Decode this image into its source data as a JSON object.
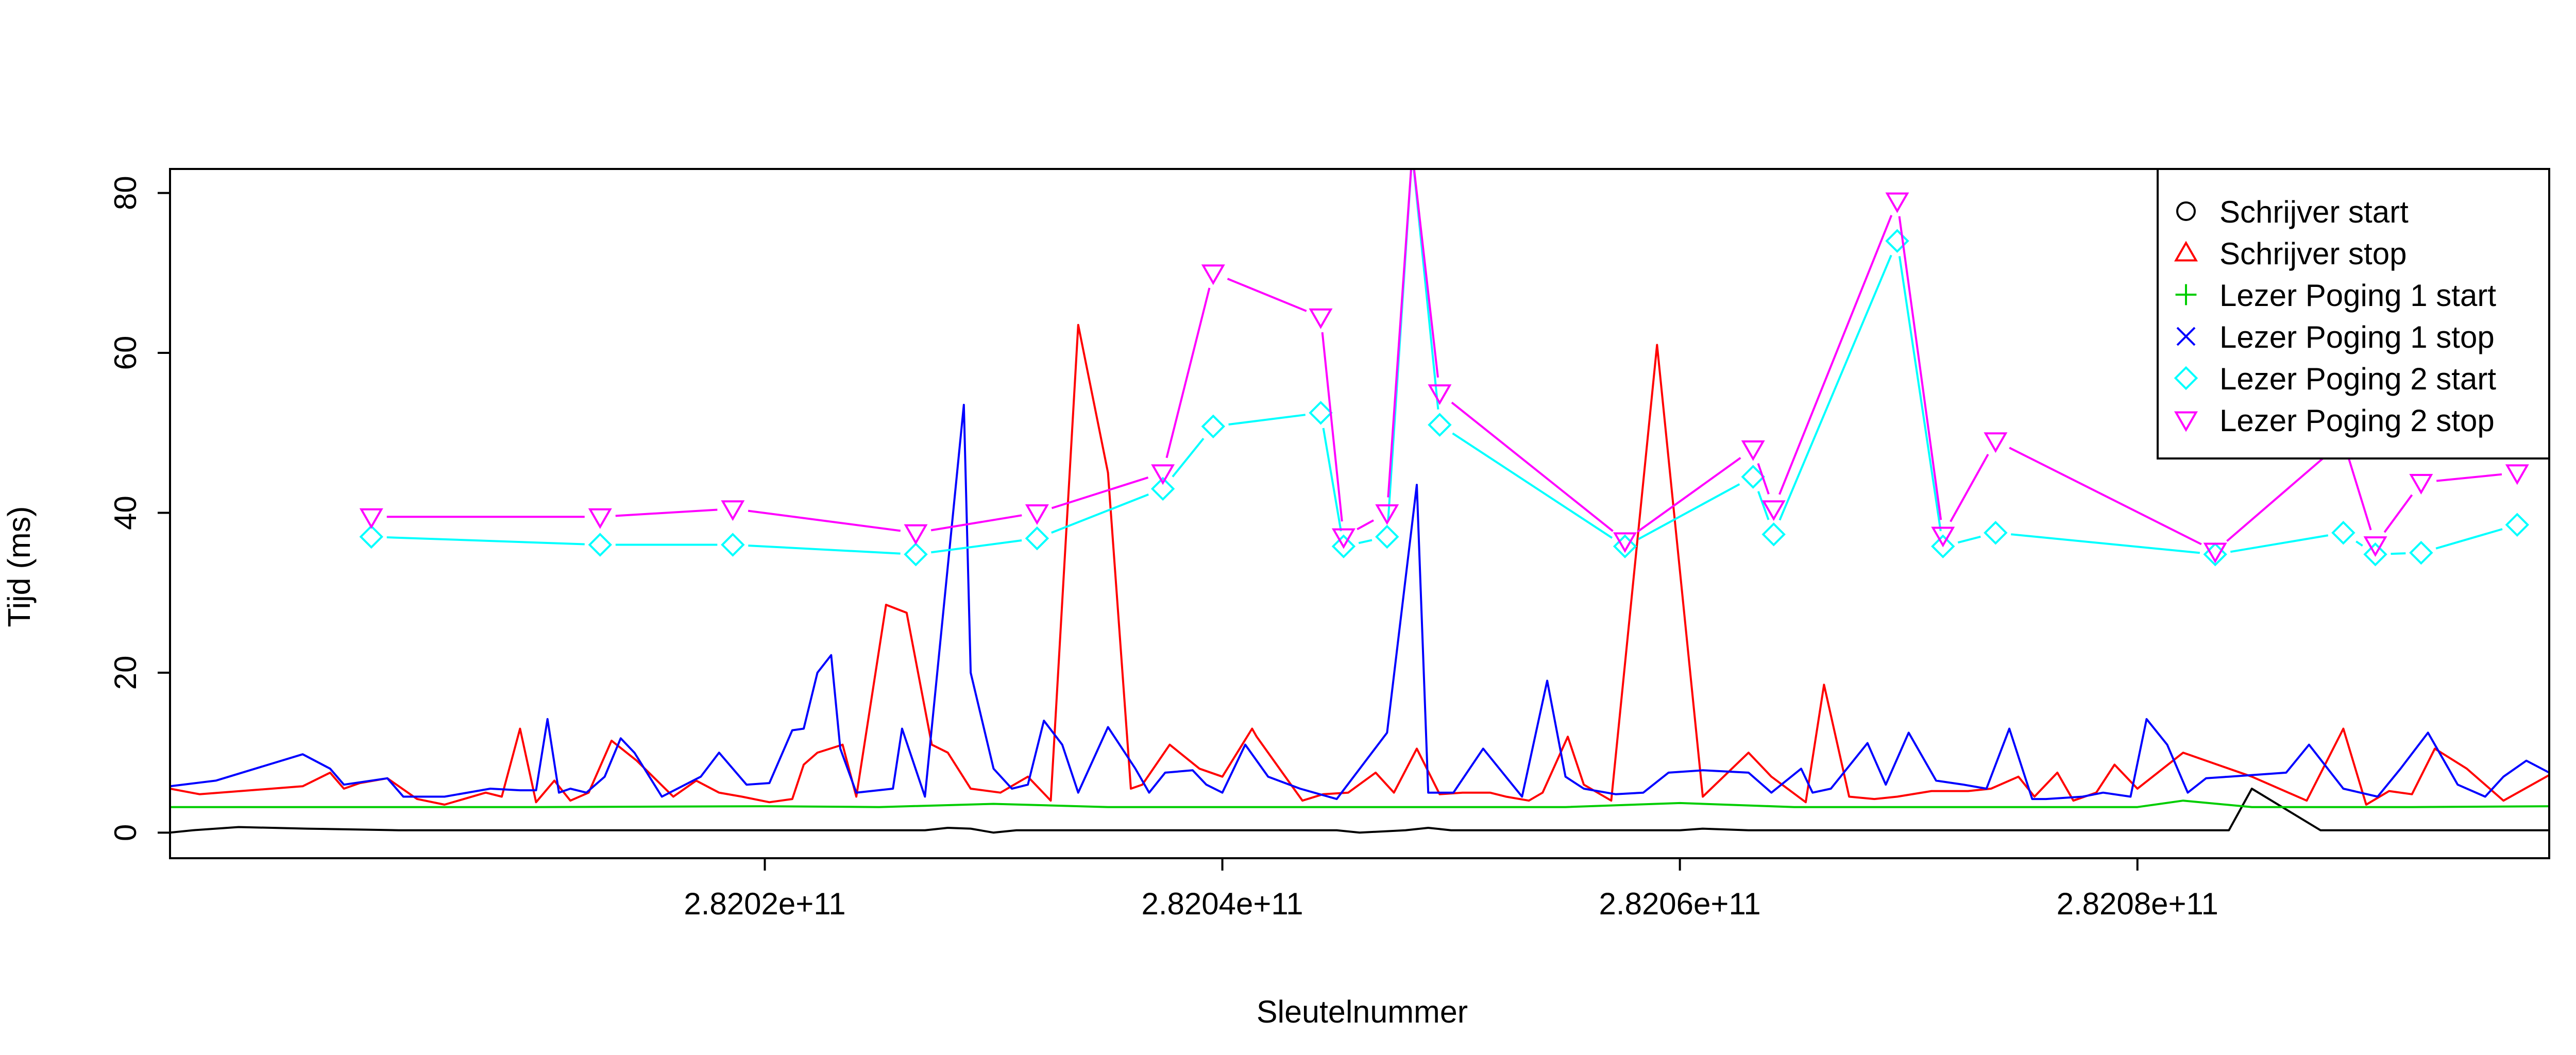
{
  "chart_data": {
    "type": "line",
    "title": "",
    "xlabel": "Sleutelnummer",
    "ylabel": "Tijd (ms)",
    "xlim": [
      281994000000,
      282098000000
    ],
    "ylim": [
      -3.2,
      83
    ],
    "grid": false,
    "legend_position": "top-right",
    "x_ticks": [
      282020000000,
      282040000000,
      282060000000,
      282080000000
    ],
    "x_tick_labels": [
      "2.8202e+11",
      "2.8204e+11",
      "2.8206e+11",
      "2.8208e+11"
    ],
    "y_ticks": [
      0,
      20,
      40,
      60,
      80
    ],
    "y_tick_labels": [
      "0",
      "20",
      "40",
      "60",
      "80"
    ],
    "series": [
      {
        "name": "Schrijver start",
        "color": "#000000",
        "marker": "circle",
        "x": [
          281994000000,
          281995000000,
          281997000000,
          282000000000,
          282004000000,
          282010000000,
          282016000000,
          282021000000,
          282024000000,
          282027000000,
          282028000000,
          282029000000,
          282030000000,
          282031000000,
          282034000000,
          282038000000,
          282040000000,
          282044000000,
          282045000000,
          282046000000,
          282048000000,
          282049000000,
          282050000000,
          282055000000,
          282058000000,
          282060000000,
          282061000000,
          282063000000,
          282066000000,
          282070000000,
          282075000000,
          282080000000,
          282084000000,
          282085000000,
          282088000000,
          282093000000,
          282098000000
        ],
        "values": [
          0,
          0.3,
          0.7,
          0.5,
          0.3,
          0.3,
          0.3,
          0.3,
          0.3,
          0.3,
          0.6,
          0.5,
          0,
          0.3,
          0.3,
          0.3,
          0.3,
          0.3,
          0.3,
          0,
          0.3,
          0.6,
          0.3,
          0.3,
          0.3,
          0.3,
          0.5,
          0.3,
          0.3,
          0.3,
          0.3,
          0.3,
          0.3,
          5.5,
          0.3,
          0.3,
          0.3
        ]
      },
      {
        "name": "Schrijver stop",
        "color": "#ff0000",
        "marker": "triangle",
        "x": [
          281994000000,
          281995300000,
          281999800000,
          282001000000,
          282001600000,
          282002300000,
          282003500000,
          282004800000,
          282006000000,
          282007800000,
          282008500000,
          282009300000,
          282010000000,
          282010800000,
          282011500000,
          282012300000,
          282013300000,
          282014400000,
          282016000000,
          282017000000,
          282018000000,
          282019000000,
          282020200000,
          282021200000,
          282021700000,
          282022300000,
          282023400000,
          282024000000,
          282025300000,
          282026200000,
          282027300000,
          282028000000,
          282029000000,
          282030300000,
          282031500000,
          282032500000,
          282033700000,
          282035000000,
          282036000000,
          282036500000,
          282037700000,
          282039000000,
          282040000000,
          282041300000,
          282041500000,
          282042500000,
          282043000000,
          282043500000,
          282044400000,
          282045500000,
          282046700000,
          282047500000,
          282048500000,
          282049500000,
          282050500000,
          282051700000,
          282052400000,
          282053400000,
          282054000000,
          282055100000,
          282055800000,
          282057000000,
          282059000000,
          282061000000,
          282063000000,
          282064000000,
          282065500000,
          282066300000,
          282067400000,
          282068500000,
          282069500000,
          282071000000,
          282072600000,
          282073600000,
          282074800000,
          282075500000,
          282076500000,
          282077200000,
          282078200000,
          282079000000,
          282080000000,
          282082000000,
          282085000000,
          282087400000,
          282089000000,
          282090000000,
          282091000000,
          282092000000,
          282093000000,
          282094400000,
          282096000000,
          282098000000
        ],
        "values": [
          5.5,
          4.8,
          5.8,
          7.5,
          5.5,
          6.2,
          6.8,
          4.2,
          3.5,
          5,
          4.5,
          13,
          3.8,
          6.5,
          4,
          5,
          11.5,
          9,
          4.5,
          6.5,
          5,
          4.5,
          3.8,
          4.2,
          8.5,
          10,
          11,
          4.5,
          28.5,
          27.5,
          11,
          10,
          5.5,
          5,
          7,
          4,
          63.5,
          45,
          5.5,
          6,
          11,
          8,
          7,
          13,
          12,
          8,
          6,
          4,
          4.8,
          5,
          7.5,
          5,
          10.5,
          4.8,
          5,
          5,
          4.5,
          4,
          5,
          12,
          6,
          4,
          61,
          4.5,
          10,
          7,
          3.8,
          18.5,
          4.5,
          4.2,
          4.5,
          5.2,
          5.2,
          5.5,
          7,
          4.5,
          7.5,
          4,
          5,
          8.5,
          5.5,
          10,
          7,
          4,
          13,
          3.5,
          5.2,
          4.8,
          10.5,
          8,
          4,
          7.2
        ]
      },
      {
        "name": "Lezer Poging 1 start",
        "color": "#00cd00",
        "marker": "plus",
        "x": [
          281994000000,
          282000000000,
          282010000000,
          282020000000,
          282025000000,
          282030000000,
          282035000000,
          282040000000,
          282050000000,
          282055000000,
          282060000000,
          282065000000,
          282070000000,
          282075000000,
          282080000000,
          282082000000,
          282085000000,
          282088000000,
          282092000000,
          282098000000
        ],
        "values": [
          3.2,
          3.2,
          3.2,
          3.3,
          3.2,
          3.6,
          3.2,
          3.2,
          3.2,
          3.2,
          3.7,
          3.2,
          3.2,
          3.2,
          3.2,
          4,
          3.2,
          3.2,
          3.2,
          3.3
        ]
      },
      {
        "name": "Lezer Poging 1 stop",
        "color": "#0000ff",
        "marker": "x",
        "x": [
          281994000000,
          281996000000,
          281999800000,
          282001000000,
          282001600000,
          282003500000,
          282004200000,
          282006000000,
          282008000000,
          282009300000,
          282010000000,
          282010500000,
          282011000000,
          282011500000,
          282012200000,
          282013000000,
          282013700000,
          282014300000,
          282015500000,
          282017200000,
          282018000000,
          282019200000,
          282020200000,
          282021200000,
          282021700000,
          282022300000,
          282022900000,
          282023300000,
          282024000000,
          282025600000,
          282026000000,
          282027000000,
          282028700000,
          282029000000,
          282030000000,
          282030800000,
          282031500000,
          282032200000,
          282033000000,
          282033700000,
          282035000000,
          282036200000,
          282036800000,
          282037500000,
          282038700000,
          282039300000,
          282040000000,
          282041000000,
          282042000000,
          282043400000,
          282045000000,
          282047200000,
          282048500000,
          282049000000,
          282050100000,
          282051400000,
          282053100000,
          282054200000,
          282055000000,
          282055800000,
          282057200000,
          282058400000,
          282059500000,
          282061000000,
          282063000000,
          282064000000,
          282065300000,
          282065800000,
          282066600000,
          282068200000,
          282069000000,
          282070000000,
          282071200000,
          282072400000,
          282073400000,
          282074400000,
          282075400000,
          282076000000,
          282077600000,
          282078500000,
          282079700000,
          282080400000,
          282081300000,
          282082200000,
          282083000000,
          282084000000,
          282085000000,
          282086500000,
          282087500000,
          282089000000,
          282090500000,
          282091500000,
          282092700000,
          282094000000,
          282095200000,
          282096000000,
          282097000000,
          282098000000
        ],
        "values": [
          5.8,
          6.5,
          9.8,
          8,
          6,
          6.8,
          4.5,
          4.5,
          5.5,
          5.3,
          5.3,
          14.2,
          5,
          5.5,
          5,
          7,
          11.8,
          10,
          4.5,
          7,
          10,
          6,
          6.2,
          12.8,
          13,
          20,
          22.2,
          10.5,
          5,
          5.5,
          13,
          4.5,
          53.5,
          20,
          8,
          5.5,
          6,
          14,
          11,
          5,
          13.2,
          8,
          5,
          7.5,
          7.8,
          6,
          5,
          11,
          7,
          5.5,
          4.2,
          12.5,
          43.5,
          5,
          5,
          10.5,
          4.5,
          19,
          7,
          5.5,
          4.8,
          5,
          7.5,
          7.8,
          7.5,
          5,
          8,
          5,
          5.5,
          11.2,
          6,
          12.5,
          6.5,
          6,
          5.5,
          13,
          4.2,
          4.2,
          4.5,
          5,
          4.5,
          14.2,
          11,
          5,
          6.8,
          7,
          7.2,
          7.5,
          11,
          5.5,
          4.5,
          8,
          12.5,
          6,
          4.5,
          7,
          9,
          7.5
        ]
      },
      {
        "name": "Lezer Poging 2 start",
        "color": "#00ffff",
        "marker": "diamond",
        "x": [
          282002800000,
          282012800000,
          282018600000,
          282026600000,
          282031900000,
          282037400000,
          282039600000,
          282044300000,
          282045300000,
          282047200000,
          282048300000,
          282049500000,
          282057600000,
          282063200000,
          282064100000,
          282069500000,
          282071500000,
          282073800000,
          282083400000,
          282089000000,
          282090400000,
          282092400000,
          282096600000
        ],
        "values": [
          37,
          36,
          36,
          34.8,
          36.8,
          43,
          50.8,
          52.5,
          35.8,
          37,
          85,
          51,
          35.8,
          44.5,
          37.3,
          74,
          35.8,
          37.5,
          34.8,
          37.5,
          34.8,
          35,
          38.5
        ]
      },
      {
        "name": "Lezer Poging 2 stop",
        "color": "#ff00ff",
        "marker": "triangle-down",
        "x": [
          282002800000,
          282012800000,
          282018600000,
          282026600000,
          282031900000,
          282037400000,
          282039600000,
          282044300000,
          282045300000,
          282047200000,
          282048300000,
          282049500000,
          282057600000,
          282063200000,
          282064100000,
          282069500000,
          282071500000,
          282073800000,
          282083400000,
          282089000000,
          282090400000,
          282092400000,
          282096600000
        ],
        "values": [
          39.5,
          39.5,
          40.5,
          37.5,
          40,
          45,
          70,
          64.5,
          37,
          40,
          85,
          55,
          36.5,
          48,
          40.5,
          79,
          37.2,
          49,
          35.2,
          49,
          36,
          43.8,
          45
        ]
      }
    ]
  }
}
